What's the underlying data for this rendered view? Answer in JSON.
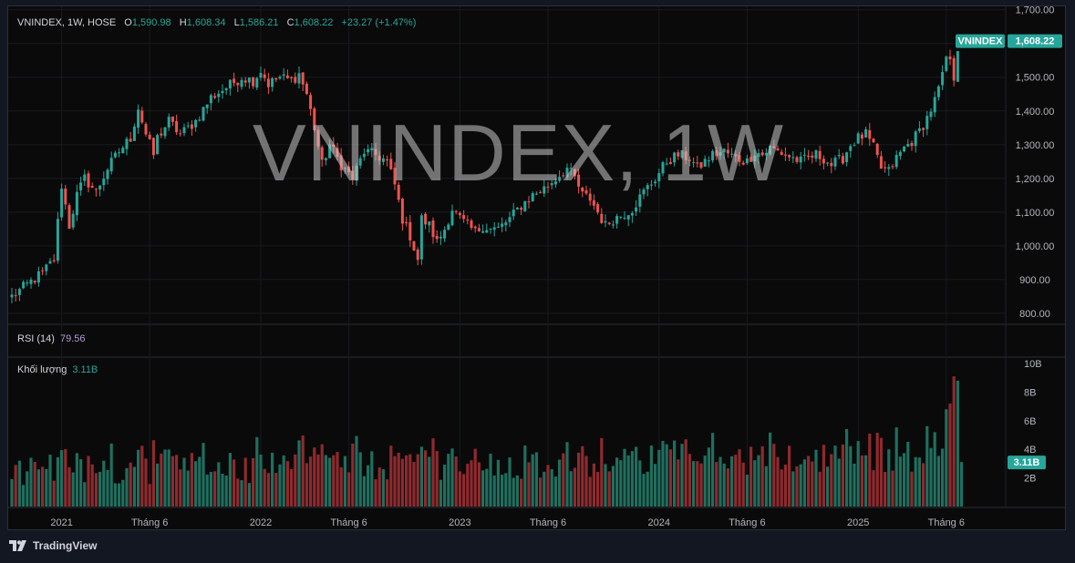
{
  "header": {
    "symbol": "VNINDEX, 1W, HOSE",
    "open_label": "O",
    "open": "1,590.98",
    "high_label": "H",
    "high": "1,608.34",
    "low_label": "L",
    "low": "1,586.21",
    "close_label": "C",
    "close": "1,608.22",
    "change": "+23.27 (+1.47%)"
  },
  "watermark": "VNINDEX, 1W",
  "price_tag": {
    "symbol": "VNINDEX",
    "value": "1,608.22"
  },
  "rsi": {
    "label": "RSI (14)",
    "value": "79.56"
  },
  "volume": {
    "label": "Khối lượng",
    "value": "3.11B",
    "tag": "3.11B"
  },
  "footer": {
    "brand": "TradingView"
  },
  "colors": {
    "up": "#26a69a",
    "down": "#ef5350",
    "up_volume": "#1f6f5e",
    "down_volume": "#8f2a2e"
  },
  "chart_data": {
    "type": "candlestick",
    "interval": "1W",
    "price_axis": {
      "ylim": [
        770,
        1710
      ],
      "ticks": [
        800,
        900,
        1000,
        1100,
        1200,
        1300,
        1400,
        1500,
        1600,
        1700
      ],
      "tick_labels": [
        "800.00",
        "900.00",
        "1,000.00",
        "1,100.00",
        "1,200.00",
        "1,300.00",
        "1,400.00",
        "1,500.00",
        "1,600.00",
        "1,700.00"
      ]
    },
    "volume_axis": {
      "unit": "B",
      "ylim": [
        0,
        10
      ],
      "ticks": [
        2,
        4,
        6,
        8,
        10
      ],
      "tick_labels": [
        "2B",
        "4B",
        "6B",
        "8B",
        "10B"
      ]
    },
    "time_axis": {
      "labels": [
        {
          "week": 13,
          "label": "2021"
        },
        {
          "week": 36,
          "label": "Tháng 6"
        },
        {
          "week": 65,
          "label": "2022"
        },
        {
          "week": 88,
          "label": "Tháng 6"
        },
        {
          "week": 117,
          "label": "2023"
        },
        {
          "week": 140,
          "label": "Tháng 6"
        },
        {
          "week": 169,
          "label": "2024"
        },
        {
          "week": 192,
          "label": "Tháng 6"
        },
        {
          "week": 221,
          "label": "2025"
        },
        {
          "week": 244,
          "label": "Tháng 6"
        }
      ]
    },
    "close_anchors": [
      [
        0,
        850
      ],
      [
        8,
        920
      ],
      [
        11,
        960
      ],
      [
        13,
        1180
      ],
      [
        15,
        1060
      ],
      [
        17,
        1150
      ],
      [
        19,
        1200
      ],
      [
        22,
        1160
      ],
      [
        25,
        1230
      ],
      [
        28,
        1280
      ],
      [
        31,
        1320
      ],
      [
        33,
        1410
      ],
      [
        35,
        1330
      ],
      [
        37,
        1270
      ],
      [
        38,
        1320
      ],
      [
        41,
        1370
      ],
      [
        44,
        1330
      ],
      [
        48,
        1370
      ],
      [
        52,
        1440
      ],
      [
        56,
        1470
      ],
      [
        60,
        1500
      ],
      [
        63,
        1490
      ],
      [
        65,
        1520
      ],
      [
        67,
        1480
      ],
      [
        70,
        1500
      ],
      [
        73,
        1490
      ],
      [
        75,
        1510
      ],
      [
        77,
        1450
      ],
      [
        79,
        1350
      ],
      [
        81,
        1240
      ],
      [
        83,
        1300
      ],
      [
        86,
        1240
      ],
      [
        89,
        1200
      ],
      [
        92,
        1280
      ],
      [
        95,
        1270
      ],
      [
        98,
        1250
      ],
      [
        100,
        1180
      ],
      [
        102,
        1080
      ],
      [
        104,
        1030
      ],
      [
        106,
        960
      ],
      [
        107,
        1080
      ],
      [
        109,
        1060
      ],
      [
        111,
        1010
      ],
      [
        113,
        1050
      ],
      [
        115,
        1110
      ],
      [
        117,
        1080
      ],
      [
        119,
        1060
      ],
      [
        121,
        1040
      ],
      [
        123,
        1060
      ],
      [
        125,
        1050
      ],
      [
        127,
        1050
      ],
      [
        130,
        1080
      ],
      [
        133,
        1120
      ],
      [
        136,
        1150
      ],
      [
        139,
        1170
      ],
      [
        142,
        1200
      ],
      [
        145,
        1230
      ],
      [
        147,
        1200
      ],
      [
        149,
        1150
      ],
      [
        151,
        1140
      ],
      [
        153,
        1100
      ],
      [
        155,
        1060
      ],
      [
        157,
        1080
      ],
      [
        159,
        1090
      ],
      [
        162,
        1110
      ],
      [
        165,
        1160
      ],
      [
        168,
        1200
      ],
      [
        171,
        1250
      ],
      [
        174,
        1270
      ],
      [
        177,
        1260
      ],
      [
        179,
        1230
      ],
      [
        181,
        1250
      ],
      [
        183,
        1270
      ],
      [
        186,
        1280
      ],
      [
        189,
        1260
      ],
      [
        192,
        1250
      ],
      [
        194,
        1280
      ],
      [
        196,
        1270
      ],
      [
        198,
        1290
      ],
      [
        200,
        1280
      ],
      [
        202,
        1270
      ],
      [
        204,
        1260
      ],
      [
        206,
        1250
      ],
      [
        208,
        1260
      ],
      [
        210,
        1270
      ],
      [
        212,
        1260
      ],
      [
        214,
        1240
      ],
      [
        217,
        1260
      ],
      [
        219,
        1300
      ],
      [
        221,
        1320
      ],
      [
        223,
        1330
      ],
      [
        225,
        1290
      ],
      [
        227,
        1230
      ],
      [
        229,
        1220
      ],
      [
        231,
        1260
      ],
      [
        233,
        1290
      ],
      [
        235,
        1310
      ],
      [
        237,
        1340
      ],
      [
        239,
        1380
      ],
      [
        241,
        1430
      ],
      [
        243,
        1500
      ],
      [
        244,
        1560
      ],
      [
        245,
        1540
      ],
      [
        246,
        1500
      ],
      [
        247,
        1590
      ],
      [
        248,
        1608
      ]
    ],
    "last": {
      "open": 1590.98,
      "high": 1608.34,
      "low": 1586.21,
      "close": 1608.22,
      "volume_b": 3.11
    },
    "volume_overrides_b": [
      [
        244,
        6.8
      ],
      [
        245,
        7.2
      ],
      [
        246,
        9.1
      ],
      [
        247,
        8.8
      ]
    ]
  }
}
